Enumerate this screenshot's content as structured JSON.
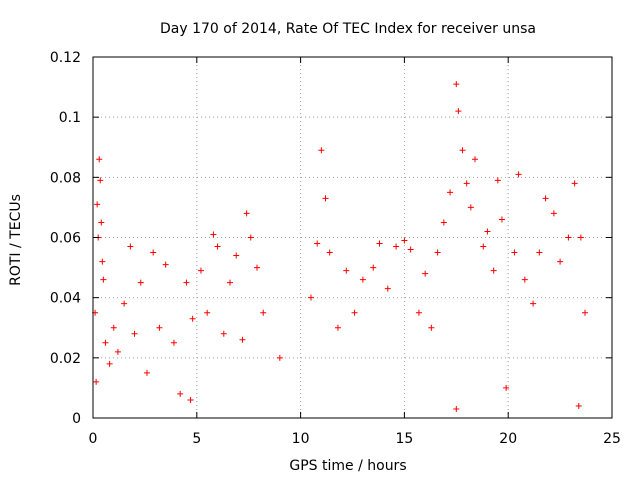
{
  "chart_data": {
    "type": "scatter",
    "title": "Day 170 of 2014, Rate Of TEC Index for receiver unsa",
    "xlabel": "GPS time / hours",
    "ylabel": "ROTI / TECUs",
    "xlim": [
      0,
      25
    ],
    "ylim": [
      0,
      0.12
    ],
    "x_ticks": [
      0,
      5,
      10,
      15,
      20,
      25
    ],
    "x_tick_labels": [
      "0",
      "5",
      "10",
      "15",
      "20",
      "25"
    ],
    "y_ticks": [
      0,
      0.02,
      0.04,
      0.06,
      0.08,
      0.1,
      0.12
    ],
    "y_tick_labels": [
      "0",
      "0.02",
      "0.04",
      "0.06",
      "0.08",
      "0.1",
      "0.12"
    ],
    "grid": true,
    "marker": "+",
    "marker_color": "#ff0000",
    "series": [
      {
        "name": "ROTI",
        "color": "#ff0000",
        "points": [
          [
            0.1,
            0.035
          ],
          [
            0.15,
            0.012
          ],
          [
            0.2,
            0.071
          ],
          [
            0.25,
            0.06
          ],
          [
            0.3,
            0.086
          ],
          [
            0.35,
            0.079
          ],
          [
            0.4,
            0.065
          ],
          [
            0.45,
            0.052
          ],
          [
            0.5,
            0.046
          ],
          [
            0.6,
            0.025
          ],
          [
            0.8,
            0.018
          ],
          [
            1.0,
            0.03
          ],
          [
            1.2,
            0.022
          ],
          [
            1.5,
            0.038
          ],
          [
            1.8,
            0.057
          ],
          [
            2.0,
            0.028
          ],
          [
            2.3,
            0.045
          ],
          [
            2.6,
            0.015
          ],
          [
            2.9,
            0.055
          ],
          [
            3.2,
            0.03
          ],
          [
            3.5,
            0.051
          ],
          [
            3.9,
            0.025
          ],
          [
            4.2,
            0.008
          ],
          [
            4.5,
            0.045
          ],
          [
            4.8,
            0.033
          ],
          [
            5.2,
            0.049
          ],
          [
            5.5,
            0.035
          ],
          [
            5.8,
            0.061
          ],
          [
            6.0,
            0.057
          ],
          [
            6.3,
            0.028
          ],
          [
            6.6,
            0.045
          ],
          [
            6.9,
            0.054
          ],
          [
            7.2,
            0.026
          ],
          [
            7.4,
            0.068
          ],
          [
            7.6,
            0.06
          ],
          [
            7.9,
            0.05
          ],
          [
            8.2,
            0.035
          ],
          [
            10.5,
            0.04
          ],
          [
            10.8,
            0.058
          ],
          [
            11.0,
            0.089
          ],
          [
            11.2,
            0.073
          ],
          [
            11.4,
            0.055
          ],
          [
            11.8,
            0.03
          ],
          [
            12.2,
            0.049
          ],
          [
            12.6,
            0.035
          ],
          [
            13.0,
            0.046
          ],
          [
            13.5,
            0.05
          ],
          [
            13.8,
            0.058
          ],
          [
            14.2,
            0.043
          ],
          [
            14.6,
            0.057
          ],
          [
            15.0,
            0.059
          ],
          [
            15.3,
            0.056
          ],
          [
            15.7,
            0.035
          ],
          [
            16.0,
            0.048
          ],
          [
            16.3,
            0.03
          ],
          [
            16.6,
            0.055
          ],
          [
            16.9,
            0.065
          ],
          [
            17.2,
            0.075
          ],
          [
            17.5,
            0.111
          ],
          [
            17.6,
            0.102
          ],
          [
            17.8,
            0.089
          ],
          [
            18.0,
            0.078
          ],
          [
            18.2,
            0.07
          ],
          [
            18.4,
            0.086
          ],
          [
            18.8,
            0.057
          ],
          [
            19.0,
            0.062
          ],
          [
            19.3,
            0.049
          ],
          [
            19.5,
            0.079
          ],
          [
            19.7,
            0.066
          ],
          [
            20.3,
            0.055
          ],
          [
            20.5,
            0.081
          ],
          [
            20.8,
            0.046
          ],
          [
            21.2,
            0.038
          ],
          [
            21.5,
            0.055
          ],
          [
            21.8,
            0.073
          ],
          [
            22.2,
            0.068
          ],
          [
            22.5,
            0.052
          ],
          [
            22.9,
            0.06
          ],
          [
            23.2,
            0.078
          ],
          [
            23.5,
            0.06
          ],
          [
            23.7,
            0.035
          ],
          [
            23.4,
            0.004
          ],
          [
            17.5,
            0.003
          ],
          [
            4.7,
            0.006
          ],
          [
            19.9,
            0.01
          ],
          [
            9.0,
            0.02
          ]
        ]
      }
    ]
  }
}
